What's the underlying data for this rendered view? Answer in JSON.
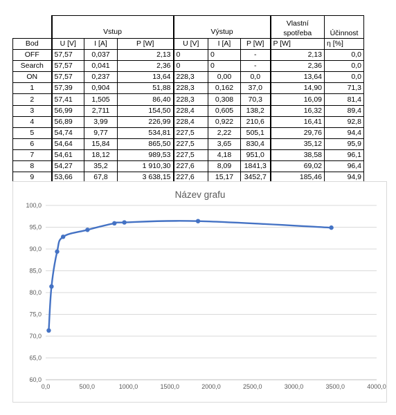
{
  "table": {
    "group_headers": {
      "bod": "",
      "vstup": "Vstup",
      "vystup": "Výstup",
      "vlastni": "Vlastní spotřeba",
      "ucinnost": "Účinnost"
    },
    "columns": [
      "Bod",
      "U [V]",
      "I [A]",
      "P [W]",
      "U [V]",
      "I [A]",
      "P [W]",
      "P [W]",
      "η [%]"
    ],
    "rows": [
      [
        "OFF",
        "57,57",
        "0,037",
        "2,13",
        "0",
        "0",
        "-",
        "2,13",
        "0,0"
      ],
      [
        "Search",
        "57,57",
        "0,041",
        "2,36",
        "0",
        "0",
        "-",
        "2,36",
        "0,0"
      ],
      [
        "ON",
        "57,57",
        "0,237",
        "13,64",
        "228,3",
        "0,00",
        "0,0",
        "13,64",
        "0,0"
      ],
      [
        "1",
        "57,39",
        "0,904",
        "51,88",
        "228,3",
        "0,162",
        "37,0",
        "14,90",
        "71,3"
      ],
      [
        "2",
        "57,41",
        "1,505",
        "86,40",
        "228,3",
        "0,308",
        "70,3",
        "16,09",
        "81,4"
      ],
      [
        "3",
        "56,99",
        "2,711",
        "154,50",
        "228,4",
        "0,605",
        "138,2",
        "16,32",
        "89,4"
      ],
      [
        "4",
        "56,89",
        "3,99",
        "226,99",
        "228,4",
        "0,922",
        "210,6",
        "16,41",
        "92,8"
      ],
      [
        "5",
        "54,74",
        "9,77",
        "534,81",
        "227,5",
        "2,22",
        "505,1",
        "29,76",
        "94,4"
      ],
      [
        "6",
        "54,64",
        "15,84",
        "865,50",
        "227,5",
        "3,65",
        "830,4",
        "35,12",
        "95,9"
      ],
      [
        "7",
        "54,61",
        "18,12",
        "989,53",
        "227,5",
        "4,18",
        "951,0",
        "38,58",
        "96,1"
      ],
      [
        "8",
        "54,27",
        "35,2",
        "1 910,30",
        "227,6",
        "8,09",
        "1841,3",
        "69,02",
        "96,4"
      ],
      [
        "9",
        "53,66",
        "67,8",
        "3 638,15",
        "227,6",
        "15,17",
        "3452,7",
        "185,46",
        "94,9"
      ]
    ]
  },
  "chart_data": {
    "type": "line",
    "title": "Název grafu",
    "xlabel": "",
    "ylabel": "",
    "xlim": [
      0,
      4000
    ],
    "ylim": [
      60,
      100
    ],
    "x_ticks": [
      "0,0",
      "500,0",
      "1000,0",
      "1500,0",
      "2000,0",
      "2500,0",
      "3000,0",
      "3500,0",
      "4000,0"
    ],
    "y_ticks": [
      "60,0",
      "65,0",
      "70,0",
      "75,0",
      "80,0",
      "85,0",
      "90,0",
      "95,0",
      "100,0"
    ],
    "grid": true,
    "series": [
      {
        "color": "#4472c4",
        "smooth": true,
        "x": [
          37.0,
          70.3,
          138.2,
          210.6,
          505.1,
          830.4,
          951.0,
          1841.3,
          3452.7
        ],
        "y": [
          71.3,
          81.4,
          89.4,
          92.8,
          94.4,
          95.9,
          96.1,
          96.4,
          94.9
        ]
      }
    ]
  }
}
